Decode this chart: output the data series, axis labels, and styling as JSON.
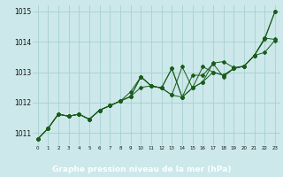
{
  "xlabel": "Graphe pression niveau de la mer (hPa)",
  "bg_color": "#cce8ea",
  "grid_color": "#a8d0d2",
  "line_color": "#1a5c1a",
  "label_bg": "#2d6b2d",
  "label_fg": "#ffffff",
  "xlim": [
    -0.5,
    23.5
  ],
  "ylim": [
    1010.6,
    1015.2
  ],
  "yticks": [
    1011,
    1012,
    1013,
    1014,
    1015
  ],
  "xticks": [
    0,
    1,
    2,
    3,
    4,
    5,
    6,
    7,
    8,
    9,
    10,
    11,
    12,
    13,
    14,
    15,
    16,
    17,
    18,
    19,
    20,
    21,
    22,
    23
  ],
  "series": [
    [
      1010.8,
      1011.15,
      1011.62,
      1011.55,
      1011.62,
      1011.45,
      1011.75,
      1011.9,
      1012.05,
      1012.2,
      1012.85,
      1012.55,
      1012.48,
      1013.12,
      1012.18,
      1012.9,
      1012.9,
      1013.28,
      1012.85,
      1013.12,
      1013.2,
      1013.55,
      1014.08,
      1015.0
    ],
    [
      1010.8,
      1011.15,
      1011.62,
      1011.55,
      1011.62,
      1011.45,
      1011.75,
      1011.9,
      1012.05,
      1012.2,
      1012.5,
      1012.55,
      1012.48,
      1012.25,
      1012.18,
      1012.48,
      1013.18,
      1013.0,
      1012.9,
      1013.12,
      1013.2,
      1013.55,
      1014.12,
      1014.08
    ],
    [
      1010.8,
      1011.15,
      1011.62,
      1011.55,
      1011.62,
      1011.45,
      1011.75,
      1011.9,
      1012.05,
      1012.2,
      1012.85,
      1012.55,
      1012.48,
      1012.25,
      1013.18,
      1012.48,
      1012.68,
      1013.0,
      1012.9,
      1013.12,
      1013.2,
      1013.55,
      1014.12,
      1015.0
    ],
    [
      1010.8,
      1011.15,
      1011.62,
      1011.55,
      1011.62,
      1011.45,
      1011.75,
      1011.9,
      1012.05,
      1012.35,
      1012.85,
      1012.55,
      1012.48,
      1013.12,
      1012.18,
      1012.48,
      1012.68,
      1013.3,
      1013.35,
      1013.15,
      1013.2,
      1013.55,
      1013.65,
      1014.05
    ]
  ]
}
